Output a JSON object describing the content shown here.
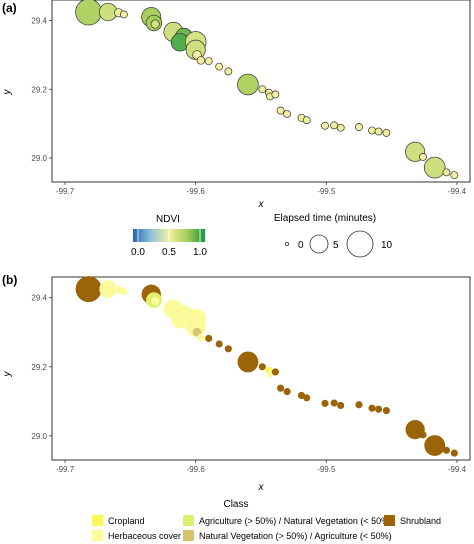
{
  "chart_data": [
    {
      "panel": "(a)",
      "type": "scatter",
      "xlabel": "x",
      "ylabel": "y",
      "xlim": [
        -99.71,
        -99.39
      ],
      "ylim": [
        28.93,
        29.46
      ],
      "xticks": [
        "-99.7",
        "-99.6",
        "-99.5",
        "-99.4"
      ],
      "yticks": [
        "29.4",
        "29.2",
        "29.0"
      ],
      "grid": false,
      "color_legend": {
        "title": "NDVI",
        "ticks": [
          "0.0",
          "0.5",
          "1.0"
        ],
        "stops": [
          "#2166ac",
          "#8fc1d9",
          "#f2efa0",
          "#a7cd5b",
          "#1a9641"
        ]
      },
      "size_legend": {
        "title": "Elapsed time (minutes)",
        "entries": [
          {
            "label": "0",
            "value": 0
          },
          {
            "label": "5",
            "value": 5
          },
          {
            "label": "10",
            "value": 10
          }
        ]
      },
      "points": [
        {
          "x": -99.682,
          "y": 29.425,
          "t": 10,
          "ndvi": 0.72
        },
        {
          "x": -99.667,
          "y": 29.425,
          "t": 4,
          "ndvi": 0.62
        },
        {
          "x": -99.659,
          "y": 29.423,
          "t": 0.5,
          "ndvi": 0.5
        },
        {
          "x": -99.655,
          "y": 29.418,
          "t": 0.3,
          "ndvi": 0.5
        },
        {
          "x": -99.634,
          "y": 29.41,
          "t": 5,
          "ndvi": 0.75
        },
        {
          "x": -99.632,
          "y": 29.393,
          "t": 3,
          "ndvi": 0.75
        },
        {
          "x": -99.631,
          "y": 29.39,
          "t": 0.5,
          "ndvi": 0.6
        },
        {
          "x": -99.617,
          "y": 29.367,
          "t": 5,
          "ndvi": 0.62
        },
        {
          "x": -99.609,
          "y": 29.352,
          "t": 4,
          "ndvi": 0.85
        },
        {
          "x": -99.612,
          "y": 29.337,
          "t": 4,
          "ndvi": 0.9
        },
        {
          "x": -99.6,
          "y": 29.338,
          "t": 6,
          "ndvi": 0.6
        },
        {
          "x": -99.6,
          "y": 29.315,
          "t": 5,
          "ndvi": 0.62
        },
        {
          "x": -99.599,
          "y": 29.3,
          "t": 0.6,
          "ndvi": 0.5
        },
        {
          "x": -99.596,
          "y": 29.284,
          "t": 0.4,
          "ndvi": 0.5
        },
        {
          "x": -99.59,
          "y": 29.282,
          "t": 0.3,
          "ndvi": 0.5
        },
        {
          "x": -99.582,
          "y": 29.266,
          "t": 0.3,
          "ndvi": 0.5
        },
        {
          "x": -99.575,
          "y": 29.252,
          "t": 0.3,
          "ndvi": 0.5
        },
        {
          "x": -99.56,
          "y": 29.214,
          "t": 6,
          "ndvi": 0.72
        },
        {
          "x": -99.549,
          "y": 29.2,
          "t": 0.3,
          "ndvi": 0.5
        },
        {
          "x": -99.544,
          "y": 29.19,
          "t": 0.3,
          "ndvi": 0.5
        },
        {
          "x": -99.543,
          "y": 29.179,
          "t": 0.3,
          "ndvi": 0.5
        },
        {
          "x": -99.539,
          "y": 29.185,
          "t": 0.3,
          "ndvi": 0.5
        },
        {
          "x": -99.535,
          "y": 29.138,
          "t": 0.3,
          "ndvi": 0.5
        },
        {
          "x": -99.53,
          "y": 29.128,
          "t": 0.3,
          "ndvi": 0.5
        },
        {
          "x": -99.519,
          "y": 29.117,
          "t": 0.3,
          "ndvi": 0.5
        },
        {
          "x": -99.515,
          "y": 29.11,
          "t": 0.3,
          "ndvi": 0.5
        },
        {
          "x": -99.501,
          "y": 29.094,
          "t": 0.3,
          "ndvi": 0.5
        },
        {
          "x": -99.494,
          "y": 29.095,
          "t": 0.3,
          "ndvi": 0.5
        },
        {
          "x": -99.489,
          "y": 29.088,
          "t": 0.3,
          "ndvi": 0.5
        },
        {
          "x": -99.475,
          "y": 29.09,
          "t": 0.3,
          "ndvi": 0.5
        },
        {
          "x": -99.465,
          "y": 29.08,
          "t": 0.3,
          "ndvi": 0.5
        },
        {
          "x": -99.46,
          "y": 29.077,
          "t": 0.3,
          "ndvi": 0.5
        },
        {
          "x": -99.454,
          "y": 29.073,
          "t": 0.3,
          "ndvi": 0.5
        },
        {
          "x": -99.432,
          "y": 29.018,
          "t": 5,
          "ndvi": 0.62
        },
        {
          "x": -99.426,
          "y": 29.003,
          "t": 0.3,
          "ndvi": 0.5
        },
        {
          "x": -99.417,
          "y": 28.972,
          "t": 6,
          "ndvi": 0.62
        },
        {
          "x": -99.408,
          "y": 28.958,
          "t": 0.3,
          "ndvi": 0.5
        },
        {
          "x": -99.402,
          "y": 28.95,
          "t": 0.3,
          "ndvi": 0.5
        }
      ]
    },
    {
      "panel": "(b)",
      "type": "scatter",
      "xlabel": "x",
      "ylabel": "y",
      "xlim": [
        -99.71,
        -99.39
      ],
      "ylim": [
        28.93,
        29.46
      ],
      "xticks": [
        "-99.7",
        "-99.6",
        "-99.5",
        "-99.4"
      ],
      "yticks": [
        "29.4",
        "29.2",
        "29.0"
      ],
      "grid": false,
      "legend": {
        "title": "Class",
        "entries": [
          {
            "label": "Cropland",
            "color": "#f7f75a"
          },
          {
            "label": "Herbaceous cover",
            "color": "#fbfb9b"
          },
          {
            "label": "Agriculture (> 50%) / Natural Vegetation (< 50%)",
            "color": "#dcf06c"
          },
          {
            "label": "Natural Vegetation (> 50%) / Agriculture (< 50%)",
            "color": "#d4c46e"
          },
          {
            "label": "Shrubland",
            "color": "#9c6408"
          }
        ]
      },
      "points": [
        {
          "x": -99.682,
          "y": 29.425,
          "t": 10,
          "class": "Shrubland"
        },
        {
          "x": -99.667,
          "y": 29.425,
          "t": 4,
          "class": "Herbaceous cover"
        },
        {
          "x": -99.659,
          "y": 29.423,
          "t": 0.5,
          "class": "Herbaceous cover"
        },
        {
          "x": -99.655,
          "y": 29.418,
          "t": 0.3,
          "class": "Herbaceous cover"
        },
        {
          "x": -99.634,
          "y": 29.41,
          "t": 5,
          "class": "Shrubland"
        },
        {
          "x": -99.632,
          "y": 29.393,
          "t": 3,
          "class": "Agriculture (> 50%) / Natural Vegetation (< 50%)"
        },
        {
          "x": -99.631,
          "y": 29.39,
          "t": 0.5,
          "class": "Herbaceous cover"
        },
        {
          "x": -99.617,
          "y": 29.367,
          "t": 5,
          "class": "Herbaceous cover"
        },
        {
          "x": -99.609,
          "y": 29.352,
          "t": 4,
          "class": "Herbaceous cover"
        },
        {
          "x": -99.612,
          "y": 29.337,
          "t": 4,
          "class": "Herbaceous cover"
        },
        {
          "x": -99.6,
          "y": 29.338,
          "t": 6,
          "class": "Herbaceous cover"
        },
        {
          "x": -99.6,
          "y": 29.315,
          "t": 5,
          "class": "Herbaceous cover"
        },
        {
          "x": -99.599,
          "y": 29.3,
          "t": 0.6,
          "class": "Natural Vegetation (> 50%) / Agriculture (< 50%)"
        },
        {
          "x": -99.596,
          "y": 29.284,
          "t": 0.4,
          "class": "Herbaceous cover"
        },
        {
          "x": -99.59,
          "y": 29.282,
          "t": 0.3,
          "class": "Shrubland"
        },
        {
          "x": -99.582,
          "y": 29.266,
          "t": 0.3,
          "class": "Shrubland"
        },
        {
          "x": -99.575,
          "y": 29.252,
          "t": 0.3,
          "class": "Shrubland"
        },
        {
          "x": -99.56,
          "y": 29.214,
          "t": 6,
          "class": "Shrubland"
        },
        {
          "x": -99.549,
          "y": 29.2,
          "t": 0.3,
          "class": "Shrubland"
        },
        {
          "x": -99.544,
          "y": 29.19,
          "t": 0.3,
          "class": "Cropland"
        },
        {
          "x": -99.543,
          "y": 29.179,
          "t": 0.3,
          "class": "Herbaceous cover"
        },
        {
          "x": -99.539,
          "y": 29.185,
          "t": 0.3,
          "class": "Shrubland"
        },
        {
          "x": -99.535,
          "y": 29.138,
          "t": 0.3,
          "class": "Shrubland"
        },
        {
          "x": -99.53,
          "y": 29.128,
          "t": 0.3,
          "class": "Shrubland"
        },
        {
          "x": -99.519,
          "y": 29.117,
          "t": 0.3,
          "class": "Shrubland"
        },
        {
          "x": -99.515,
          "y": 29.11,
          "t": 0.3,
          "class": "Shrubland"
        },
        {
          "x": -99.501,
          "y": 29.094,
          "t": 0.3,
          "class": "Shrubland"
        },
        {
          "x": -99.494,
          "y": 29.095,
          "t": 0.3,
          "class": "Shrubland"
        },
        {
          "x": -99.489,
          "y": 29.088,
          "t": 0.3,
          "class": "Shrubland"
        },
        {
          "x": -99.475,
          "y": 29.09,
          "t": 0.3,
          "class": "Shrubland"
        },
        {
          "x": -99.465,
          "y": 29.08,
          "t": 0.3,
          "class": "Shrubland"
        },
        {
          "x": -99.46,
          "y": 29.077,
          "t": 0.3,
          "class": "Shrubland"
        },
        {
          "x": -99.454,
          "y": 29.073,
          "t": 0.3,
          "class": "Shrubland"
        },
        {
          "x": -99.432,
          "y": 29.018,
          "t": 5,
          "class": "Shrubland"
        },
        {
          "x": -99.426,
          "y": 29.003,
          "t": 0.3,
          "class": "Shrubland"
        },
        {
          "x": -99.417,
          "y": 28.972,
          "t": 6,
          "class": "Shrubland"
        },
        {
          "x": -99.408,
          "y": 28.958,
          "t": 0.3,
          "class": "Shrubland"
        },
        {
          "x": -99.402,
          "y": 28.95,
          "t": 0.3,
          "class": "Shrubland"
        }
      ]
    }
  ],
  "colors": {
    "panel_border": "#333333",
    "tick_text": "#4d4d4d",
    "point_outline": "#333333"
  }
}
